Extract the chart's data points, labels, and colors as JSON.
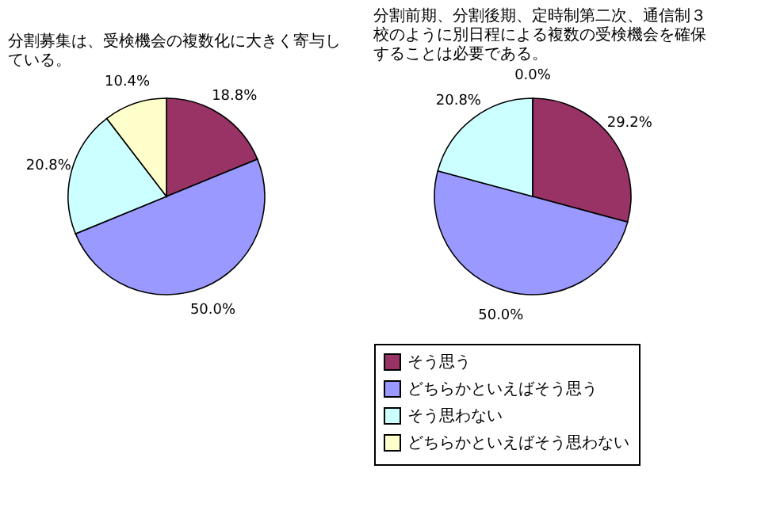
{
  "chart_data": [
    {
      "type": "pie",
      "title": "分割募集は、受検機会の複数化に大きく寄与している。",
      "categories": [
        null,
        null,
        null,
        null
      ],
      "values": [
        18.8,
        50.0,
        20.8,
        10.4
      ],
      "colors": [
        "#993366",
        "#9999ff",
        "#ccffff",
        "#ffffcc"
      ],
      "value_labels": [
        "18.8%",
        "50.0%",
        "20.8%",
        "10.4%"
      ]
    },
    {
      "type": "pie",
      "title": "分割前期、分割後期、定時制第二次、通信制３校のように別日程による複数の受検機会を確保することは必要である。",
      "categories": [
        "そう思う",
        "どちらかといえばそう思う",
        "そう思わない",
        "どちらかといえばそう思わない"
      ],
      "values": [
        29.2,
        50.0,
        20.8,
        0.0
      ],
      "colors": [
        "#993366",
        "#9999ff",
        "#ccffff",
        "#ffffcc"
      ],
      "value_labels": [
        "29.2%",
        "50.0%",
        "20.8%",
        "0.0%"
      ],
      "legend": "bottom"
    }
  ]
}
